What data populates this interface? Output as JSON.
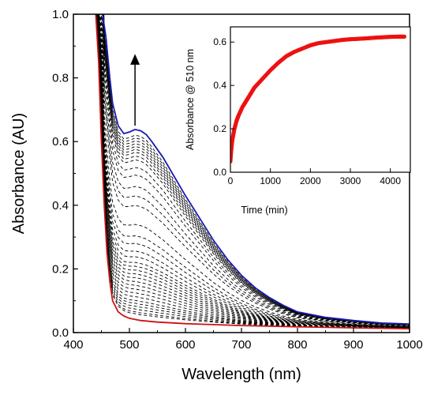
{
  "chart_data": [
    {
      "type": "line",
      "xlabel": "Wavelength (nm)",
      "ylabel": "Absorbance (AU)",
      "xlim": [
        400,
        1000
      ],
      "ylim": [
        0.0,
        1.0
      ],
      "xticks": [
        "400",
        "500",
        "600",
        "700",
        "800",
        "900",
        "1000"
      ],
      "yticks": [
        "0.0",
        "0.2",
        "0.4",
        "0.6",
        "0.8",
        "1.0"
      ],
      "series": [
        {
          "style": "solid",
          "color": "#1a1ab4",
          "x": [
            452,
            458,
            465,
            470,
            480,
            490,
            500,
            510,
            520,
            530,
            540,
            560,
            580,
            600,
            625,
            650,
            675,
            700,
            725,
            750,
            775,
            800,
            850,
            900,
            950,
            1000
          ],
          "y": [
            1.0,
            0.93,
            0.8,
            0.72,
            0.65,
            0.625,
            0.63,
            0.638,
            0.634,
            0.622,
            0.6,
            0.55,
            0.49,
            0.43,
            0.36,
            0.29,
            0.23,
            0.18,
            0.14,
            0.11,
            0.085,
            0.065,
            0.048,
            0.038,
            0.03,
            0.027
          ]
        },
        {
          "style": "solid",
          "color": "#cc1111",
          "x": [
            440,
            445,
            450,
            455,
            460,
            465,
            470,
            480,
            490,
            500,
            520,
            550,
            600,
            650,
            700,
            750,
            800,
            900,
            1000
          ],
          "y": [
            1.0,
            0.85,
            0.6,
            0.4,
            0.25,
            0.16,
            0.1,
            0.065,
            0.052,
            0.045,
            0.038,
            0.033,
            0.028,
            0.025,
            0.022,
            0.02,
            0.018,
            0.015,
            0.012
          ]
        },
        {
          "style": "dashed",
          "color": "#000000",
          "scales": [
            0.97,
            0.955,
            0.94,
            0.925,
            0.91,
            0.895,
            0.88,
            0.86,
            0.84,
            0.8,
            0.76,
            0.7,
            0.65,
            0.6,
            0.5,
            0.44,
            0.4,
            0.36,
            0.33,
            0.3,
            0.28,
            0.26,
            0.24,
            0.22,
            0.2,
            0.18,
            0.16,
            0.14,
            0.12,
            0.1,
            0.085,
            0.07,
            0.055,
            0.04,
            0.03
          ]
        }
      ],
      "arrow": {
        "x": 510,
        "y_from": 0.65,
        "y_to": 0.86
      }
    },
    {
      "type": "scatter",
      "xlabel": "Time (min)",
      "ylabel": "Absorbance @ 510 nm",
      "xlim": [
        0,
        4500
      ],
      "ylim": [
        0.0,
        0.67
      ],
      "xticks": [
        "0",
        "1000",
        "2000",
        "3000",
        "4000"
      ],
      "yticks": [
        "0.0",
        "0.2",
        "0.4",
        "0.6"
      ],
      "series": [
        {
          "color": "#ee1111",
          "x": [
            0,
            20,
            50,
            100,
            150,
            200,
            300,
            400,
            500,
            600,
            800,
            1000,
            1200,
            1400,
            1600,
            1800,
            2000,
            2200,
            2400,
            2600,
            2800,
            3000,
            3200,
            3400,
            3600,
            3800,
            4000,
            4200,
            4350
          ],
          "y": [
            0.05,
            0.1,
            0.15,
            0.2,
            0.235,
            0.26,
            0.3,
            0.33,
            0.36,
            0.39,
            0.43,
            0.47,
            0.505,
            0.535,
            0.555,
            0.57,
            0.585,
            0.595,
            0.6,
            0.605,
            0.61,
            0.613,
            0.615,
            0.617,
            0.62,
            0.622,
            0.624,
            0.625,
            0.625
          ]
        }
      ]
    }
  ]
}
